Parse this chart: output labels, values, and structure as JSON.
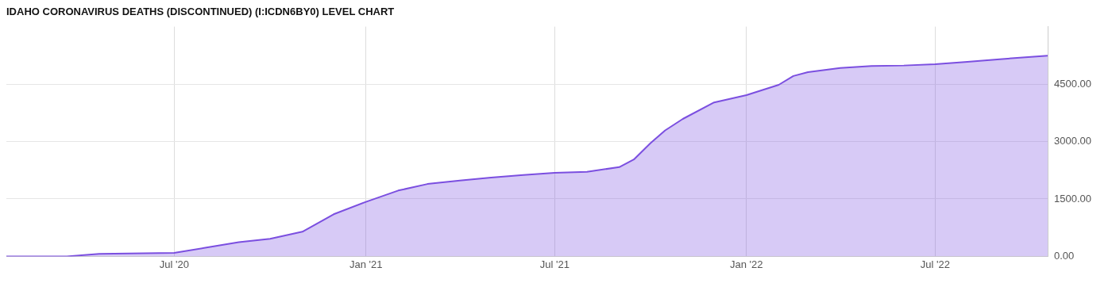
{
  "chart_data": {
    "type": "area",
    "title": "IDAHO CORONAVIRUS DEATHS (DISCONTINUED) (I:ICDN6BY0) LEVEL CHART",
    "x": [
      "2020-01-22",
      "2020-03-20",
      "2020-04-20",
      "2020-07-01",
      "2020-08-01",
      "2020-09-01",
      "2020-10-01",
      "2020-11-01",
      "2020-12-01",
      "2021-01-01",
      "2021-02-01",
      "2021-03-01",
      "2021-04-01",
      "2021-05-01",
      "2021-06-01",
      "2021-07-01",
      "2021-08-01",
      "2021-09-01",
      "2021-09-15",
      "2021-10-01",
      "2021-10-15",
      "2021-11-01",
      "2021-12-01",
      "2022-01-01",
      "2022-02-01",
      "2022-02-15",
      "2022-03-01",
      "2022-04-01",
      "2022-05-01",
      "2022-06-01",
      "2022-07-01",
      "2022-08-01",
      "2022-09-01",
      "2022-10-01",
      "2022-10-17"
    ],
    "series": [
      {
        "color": "#7b4fe0",
        "values": [
          0,
          0,
          64,
          92,
          230,
          370,
          460,
          644,
          1100,
          1425,
          1720,
          1890,
          1980,
          2060,
          2125,
          2180,
          2210,
          2330,
          2530,
          2960,
          3290,
          3590,
          4020,
          4210,
          4480,
          4710,
          4810,
          4920,
          4970,
          4985,
          5020,
          5080,
          5150,
          5210,
          5240
        ]
      }
    ],
    "xlim": [
      "2020-01-22",
      "2022-10-17"
    ],
    "xticks": [
      {
        "value": "2020-07-01",
        "label": "Jul '20"
      },
      {
        "value": "2021-01-01",
        "label": "Jan '21"
      },
      {
        "value": "2021-07-01",
        "label": "Jul '21"
      },
      {
        "value": "2022-01-01",
        "label": "Jan '22"
      },
      {
        "value": "2022-07-01",
        "label": "Jul '22"
      }
    ],
    "ylim": [
      0,
      6000
    ],
    "yticks": [
      {
        "value": 0,
        "label": "0.00"
      },
      {
        "value": 1500,
        "label": "1500.00"
      },
      {
        "value": 3000,
        "label": "3000.00"
      },
      {
        "value": 4500,
        "label": "4500.00"
      }
    ],
    "grid": true,
    "legend": false,
    "marker": "none",
    "line_style": "solid"
  }
}
